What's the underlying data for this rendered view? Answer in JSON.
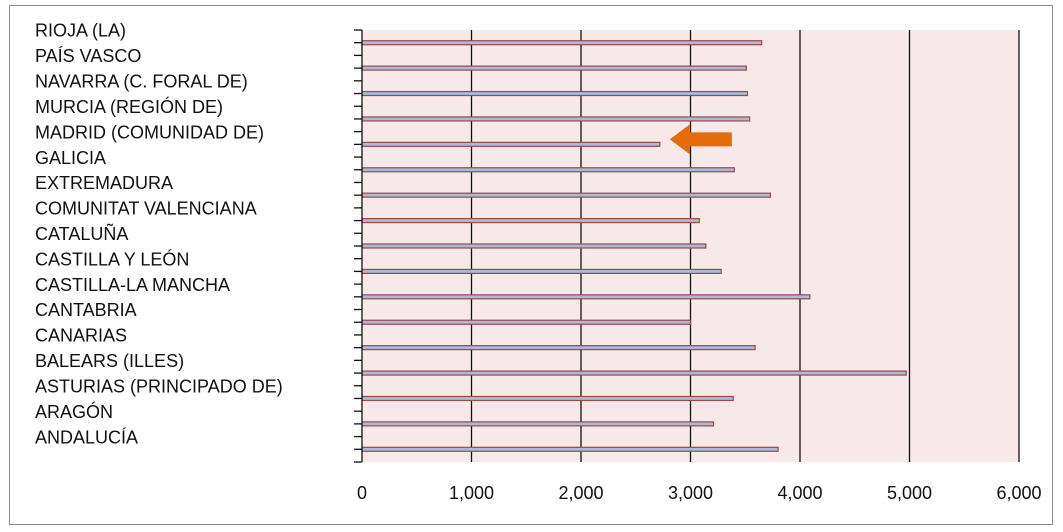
{
  "chart_data": {
    "type": "bar",
    "orientation": "horizontal",
    "categories": [
      "RIOJA (LA)",
      "PAÍS VASCO",
      "NAVARRA (C. FORAL DE)",
      "MURCIA (REGIÓN DE)",
      "MADRID (COMUNIDAD DE)",
      "GALICIA",
      "EXTREMADURA",
      "COMUNITAT VALENCIANA",
      "CATALUÑA",
      "CASTILLA Y LEÓN",
      "CASTILLA-LA MANCHA",
      "CANTABRIA",
      "CANARIAS",
      "BALEARS (ILLES)",
      "ASTURIAS (PRINCIPADO DE)",
      "ARAGÓN",
      "ANDALUCÍA"
    ],
    "values": [
      3650,
      3510,
      3520,
      3540,
      2720,
      3400,
      3730,
      3080,
      3140,
      3280,
      4090,
      3000,
      3590,
      4970,
      3390,
      3210,
      3800
    ],
    "xlim": [
      0,
      6000
    ],
    "xticks": [
      0,
      1000,
      2000,
      3000,
      4000,
      5000,
      6000
    ],
    "xtick_labels": [
      "0",
      "1,000",
      "2,000",
      "3,000",
      "4,000",
      "5,000",
      "6,000"
    ],
    "grid": "vertical",
    "highlight_category": "MADRID (COMUNIDAD DE)",
    "colors": {
      "plot_background": "#f7e9e9",
      "bar_fill": "#a6bcd9",
      "bar_outline": "#9e4848",
      "gridline": "#111111",
      "arrow": "#e46c0a"
    }
  }
}
